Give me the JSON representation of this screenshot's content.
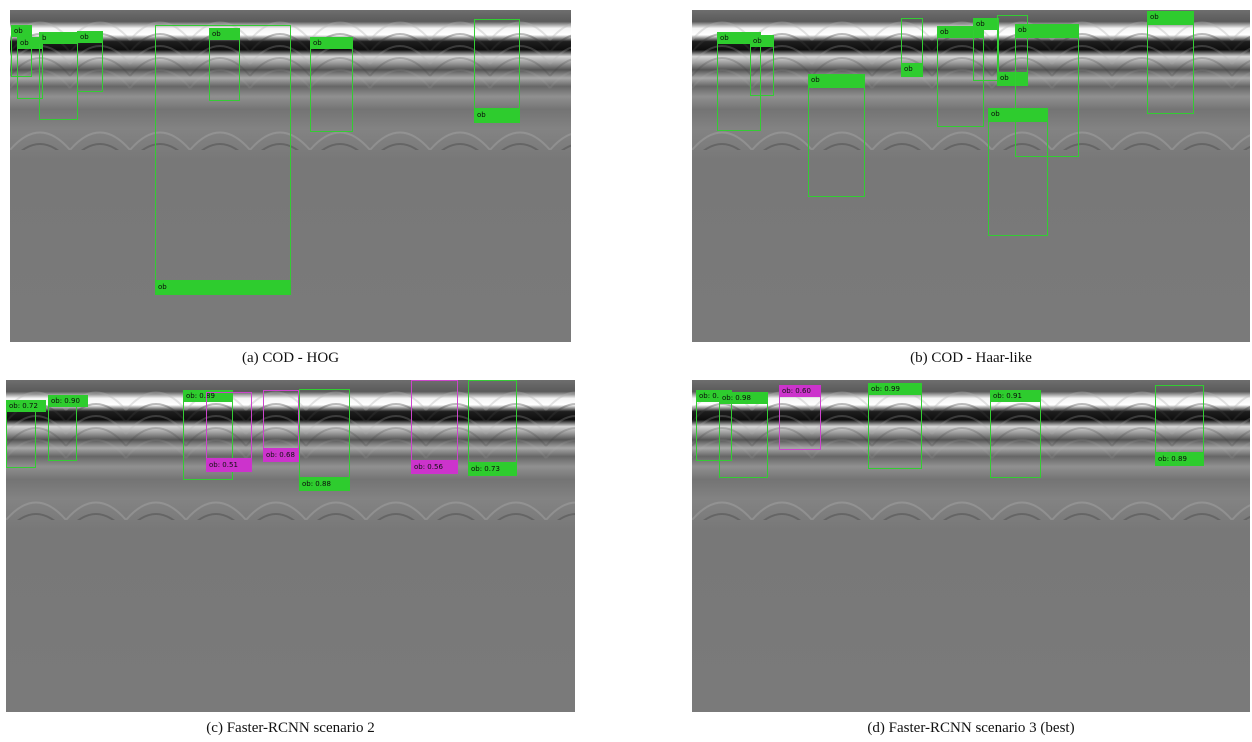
{
  "figure": {
    "panels": [
      {
        "id": "a",
        "caption": "(a) COD - HOG",
        "detections": [
          {
            "label": "ob",
            "color": "green"
          },
          {
            "label": "ob",
            "color": "green"
          },
          {
            "label": "b",
            "color": "green"
          },
          {
            "label": "ob",
            "color": "green"
          },
          {
            "label": "ob",
            "color": "green"
          },
          {
            "label": "ob",
            "color": "green"
          },
          {
            "label": "ob",
            "color": "green"
          },
          {
            "label": "ob",
            "color": "green"
          },
          {
            "label": "ob",
            "color": "green"
          }
        ]
      },
      {
        "id": "b",
        "caption": "(b) COD - Haar-like",
        "detections": [
          {
            "label": "ob",
            "color": "green"
          },
          {
            "label": "ob",
            "color": "green"
          },
          {
            "label": "ob",
            "color": "green"
          },
          {
            "label": "ob",
            "color": "green"
          },
          {
            "label": "ob",
            "color": "green"
          },
          {
            "label": "ob",
            "color": "green"
          },
          {
            "label": "ob",
            "color": "green"
          },
          {
            "label": "ob",
            "color": "green"
          },
          {
            "label": "ob",
            "color": "green"
          },
          {
            "label": "ob",
            "color": "green"
          }
        ]
      },
      {
        "id": "c",
        "caption": "(c) Faster-RCNN scenario 2",
        "detections": [
          {
            "label": "ob: 0.72",
            "color": "green"
          },
          {
            "label": "ob: 0.90",
            "color": "green"
          },
          {
            "label": "ob: 0.89",
            "color": "green"
          },
          {
            "label": "ob: 0.51",
            "color": "magenta"
          },
          {
            "label": "ob: 0.68",
            "color": "magenta"
          },
          {
            "label": "ob: 0.88",
            "color": "green"
          },
          {
            "label": "ob: 0.56",
            "color": "magenta"
          },
          {
            "label": "ob: 0.73",
            "color": "green"
          }
        ]
      },
      {
        "id": "d",
        "caption": "(d) Faster-RCNN scenario 3 (best)",
        "detections": [
          {
            "label": "ob: 0.",
            "color": "green"
          },
          {
            "label": "ob: 0.98",
            "color": "green"
          },
          {
            "label": "ob: 0.60",
            "color": "magenta"
          },
          {
            "label": "ob: 0.99",
            "color": "green"
          },
          {
            "label": "ob: 0.91",
            "color": "green"
          },
          {
            "label": "ob: 0.89",
            "color": "green"
          }
        ]
      }
    ]
  }
}
